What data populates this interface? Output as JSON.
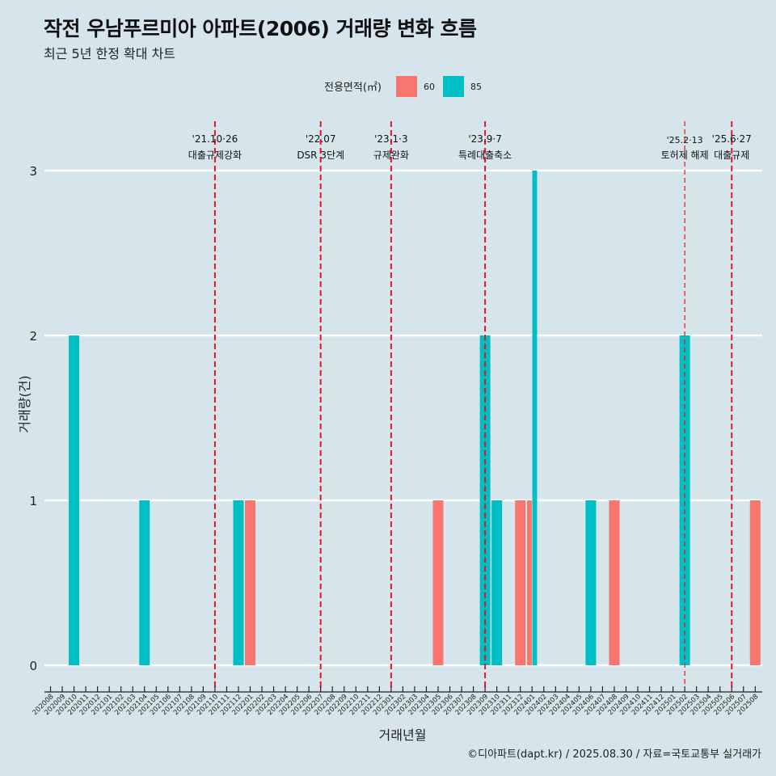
{
  "header": {
    "title": "작전 우남푸르미아 아파트(2006) 거래량 변화 흐름",
    "subtitle": "최근 5년 한정 확대 차트"
  },
  "caption": "©디아파트(dapt.kr) / 2025.08.30 / 자료=국토교통부 실거래가",
  "chart_data": {
    "type": "bar",
    "title": "작전 우남푸르미아 아파트(2006) 거래량 변화 흐름",
    "subtitle": "최근 5년 한정 확대 차트",
    "xlabel": "거래년월",
    "ylabel": "거래량(건)",
    "ylim": [
      0,
      3
    ],
    "yticks": [
      0,
      1,
      2,
      3
    ],
    "grid": true,
    "legend": {
      "title": "전용면적(㎡)",
      "placement": "top",
      "entries": [
        {
          "name": "60",
          "color": "#f8766d"
        },
        {
          "name": "85",
          "color": "#00bfc4"
        }
      ]
    },
    "categories": [
      "202008",
      "202009",
      "202010",
      "202011",
      "202012",
      "202101",
      "202102",
      "202103",
      "202104",
      "202105",
      "202106",
      "202107",
      "202108",
      "202109",
      "202110",
      "202111",
      "202112",
      "202201",
      "202202",
      "202203",
      "202204",
      "202205",
      "202206",
      "202207",
      "202208",
      "202209",
      "202210",
      "202211",
      "202212",
      "202301",
      "202302",
      "202303",
      "202304",
      "202305",
      "202306",
      "202307",
      "202308",
      "202309",
      "202310",
      "202311",
      "202312",
      "202401",
      "202402",
      "202403",
      "202404",
      "202405",
      "202406",
      "202407",
      "202408",
      "202409",
      "202410",
      "202411",
      "202412",
      "202501",
      "202502",
      "202503",
      "202504",
      "202505",
      "202506",
      "202507",
      "202508"
    ],
    "series": [
      {
        "name": "60",
        "color": "#f8766d",
        "points": [
          {
            "x": "202201",
            "y": 1
          },
          {
            "x": "202305",
            "y": 1
          },
          {
            "x": "202312",
            "y": 1
          },
          {
            "x": "202401",
            "y": 1
          },
          {
            "x": "202408",
            "y": 1
          },
          {
            "x": "202508",
            "y": 1
          }
        ]
      },
      {
        "name": "85",
        "color": "#00bfc4",
        "points": [
          {
            "x": "202010",
            "y": 2
          },
          {
            "x": "202104",
            "y": 1
          },
          {
            "x": "202112",
            "y": 1
          },
          {
            "x": "202309",
            "y": 2
          },
          {
            "x": "202310",
            "y": 1
          },
          {
            "x": "202401",
            "y": 3
          },
          {
            "x": "202406",
            "y": 1
          },
          {
            "x": "202502",
            "y": 2
          }
        ]
      }
    ],
    "annotations": [
      {
        "x": "202110",
        "date": "'21.10·26",
        "label": "대출규제강화",
        "style": "bold"
      },
      {
        "x": "202207",
        "date": "'22.07",
        "label": "DSR 3단계",
        "style": "bold"
      },
      {
        "x": "202301",
        "date": "'23.1·3",
        "label": "규제완화",
        "style": "bold"
      },
      {
        "x": "202309",
        "date": "'23.9·7",
        "label": "특례대출축소",
        "style": "bold"
      },
      {
        "x": "202502",
        "date": "'25.2·13",
        "label": "토허제 해제",
        "style": "thin"
      },
      {
        "x": "202506",
        "date": "'25.6·27",
        "label": "대출규제",
        "style": "bold"
      }
    ]
  }
}
